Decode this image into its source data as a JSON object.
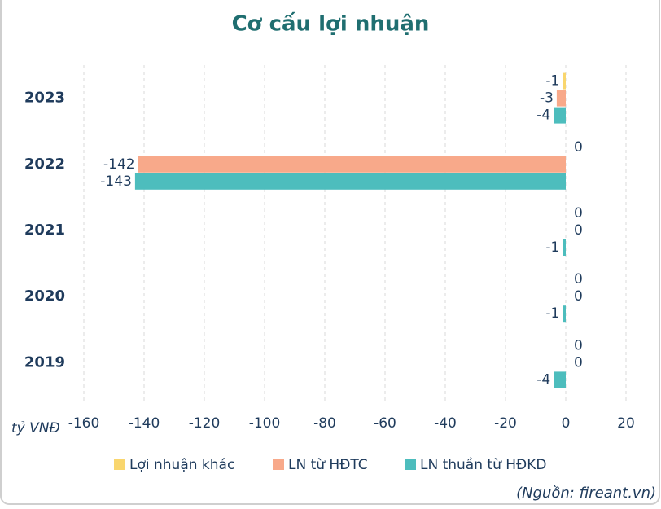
{
  "chart_data": {
    "type": "hbar",
    "title": "Cơ cấu lợi nhuận",
    "x_label": "tỷ VNĐ",
    "source": "(Nguồn: fireant.vn)",
    "categories": [
      "2023",
      "2022",
      "2021",
      "2020",
      "2019"
    ],
    "series": [
      {
        "name": "Lợi nhuận khác",
        "color": "#f9d66e",
        "values": [
          -1,
          0,
          0,
          0,
          0
        ]
      },
      {
        "name": "LN từ HĐTC",
        "color": "#f8a98a",
        "values": [
          -3,
          -142,
          0,
          0,
          0
        ]
      },
      {
        "name": "LN thuần từ HĐKD",
        "color": "#4dbdbd",
        "values": [
          -4,
          -143,
          -1,
          -1,
          -4
        ]
      }
    ],
    "xlim": [
      -160,
      20
    ],
    "xticks": [
      -160,
      -140,
      -120,
      -100,
      -80,
      -60,
      -40,
      -20,
      0,
      20
    ],
    "grid": true
  }
}
